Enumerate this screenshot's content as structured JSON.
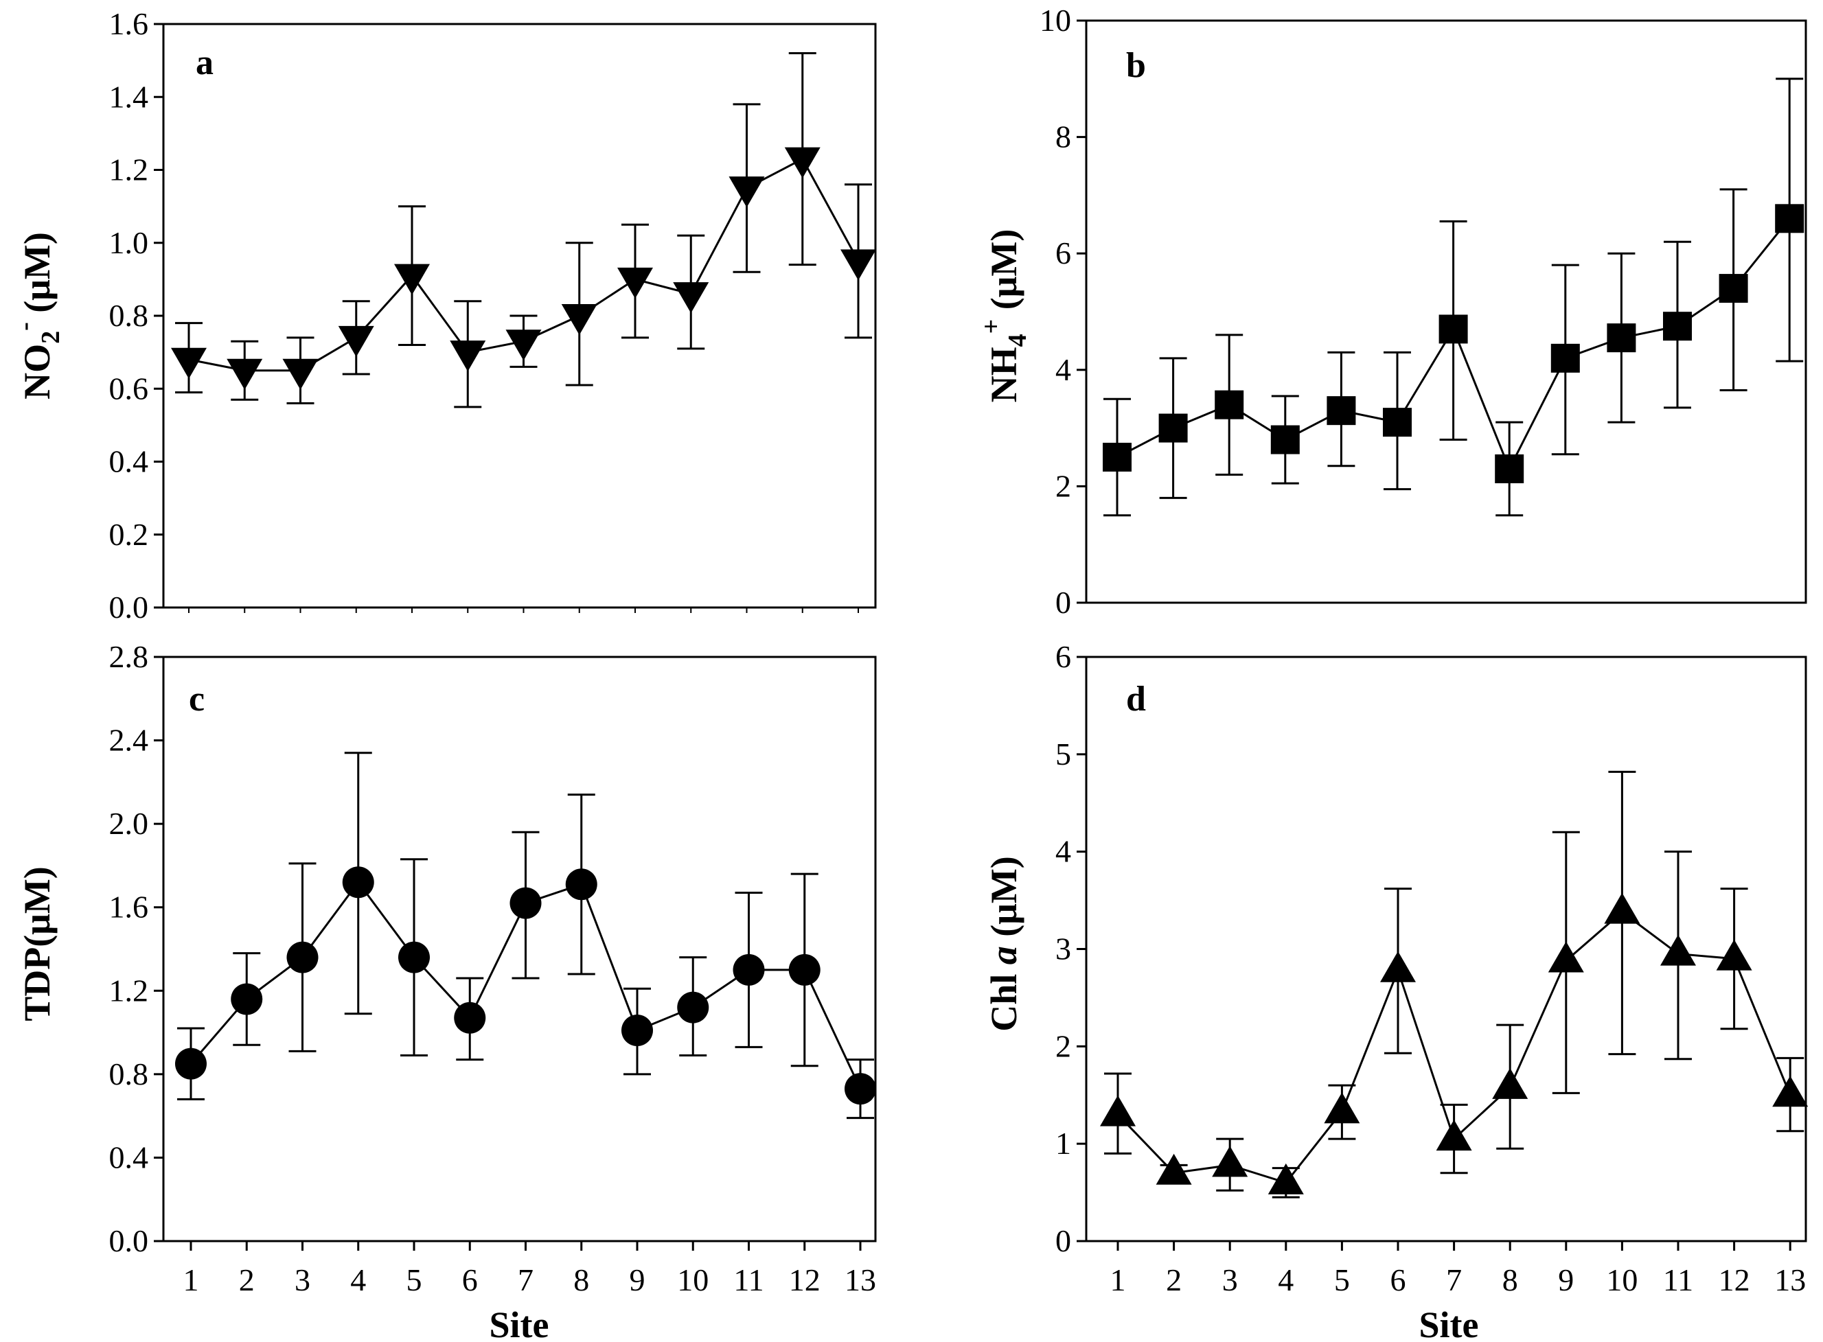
{
  "figure": {
    "panels": {
      "a": {
        "letter": "a",
        "ylabel_main": "NO",
        "ylabel_sub": "2",
        "ylabel_sup": "-",
        "ylabel_unit": " (μM)"
      },
      "b": {
        "letter": "b",
        "ylabel_main": "NH",
        "ylabel_sub": "4",
        "ylabel_sup": "+",
        "ylabel_unit": " (μM)"
      },
      "c": {
        "letter": "c",
        "ylabel_main": "TDP",
        "ylabel_unit": "(μM)"
      },
      "d": {
        "letter": "d",
        "ylabel_main": "Chl ",
        "ylabel_italic": "a",
        "ylabel_unit": " (μM)"
      }
    },
    "xlabel": "Site"
  },
  "chart_data": [
    {
      "id": "a",
      "type": "line",
      "title": "a",
      "ylabel": "NO2- (μM)",
      "xlabel": "",
      "marker": "triangle-down",
      "categories": [
        "1",
        "2",
        "3",
        "4",
        "5",
        "6",
        "7",
        "8",
        "9",
        "10",
        "11",
        "12",
        "13"
      ],
      "values": [
        0.68,
        0.65,
        0.65,
        0.74,
        0.91,
        0.7,
        0.73,
        0.8,
        0.9,
        0.86,
        1.15,
        1.23,
        0.95
      ],
      "error_upper": [
        0.78,
        0.73,
        0.74,
        0.84,
        1.1,
        0.84,
        0.8,
        1.0,
        1.05,
        1.02,
        1.38,
        1.52,
        1.16
      ],
      "error_lower": [
        0.59,
        0.57,
        0.56,
        0.64,
        0.72,
        0.55,
        0.66,
        0.61,
        0.74,
        0.71,
        0.92,
        0.94,
        0.74
      ],
      "ylim": [
        0,
        1.6
      ],
      "yticks": [
        "0.0",
        "0.2",
        "0.4",
        "0.6",
        "0.8",
        "1.0",
        "1.2",
        "1.4",
        "1.6"
      ]
    },
    {
      "id": "b",
      "type": "line",
      "title": "b",
      "ylabel": "NH4+ (μM)",
      "xlabel": "",
      "marker": "square",
      "categories": [
        "1",
        "2",
        "3",
        "4",
        "5",
        "6",
        "7",
        "8",
        "9",
        "10",
        "11",
        "12",
        "13"
      ],
      "values": [
        2.5,
        3.0,
        3.4,
        2.8,
        3.3,
        3.1,
        4.7,
        2.3,
        4.2,
        4.55,
        4.75,
        5.4,
        6.6
      ],
      "error_upper": [
        3.5,
        4.2,
        4.6,
        3.55,
        4.3,
        4.3,
        6.55,
        3.1,
        5.8,
        6.0,
        6.2,
        7.1,
        9.0
      ],
      "error_lower": [
        1.5,
        1.8,
        2.2,
        2.05,
        2.35,
        1.95,
        2.8,
        1.5,
        2.55,
        3.1,
        3.35,
        3.65,
        4.15
      ],
      "ylim": [
        0,
        10
      ],
      "yticks": [
        "0",
        "2",
        "4",
        "6",
        "8",
        "10"
      ]
    },
    {
      "id": "c",
      "type": "line",
      "title": "c",
      "ylabel": "TDP(μM)",
      "xlabel": "Site",
      "marker": "circle",
      "categories": [
        "1",
        "2",
        "3",
        "4",
        "5",
        "6",
        "7",
        "8",
        "9",
        "10",
        "11",
        "12",
        "13"
      ],
      "values": [
        0.85,
        1.16,
        1.36,
        1.72,
        1.36,
        1.07,
        1.62,
        1.71,
        1.01,
        1.12,
        1.3,
        1.3,
        0.73
      ],
      "error_upper": [
        1.02,
        1.38,
        1.81,
        2.34,
        1.83,
        1.26,
        1.96,
        2.14,
        1.21,
        1.36,
        1.67,
        1.76,
        0.87
      ],
      "error_lower": [
        0.68,
        0.94,
        0.91,
        1.09,
        0.89,
        0.87,
        1.26,
        1.28,
        0.8,
        0.89,
        0.93,
        0.84,
        0.59
      ],
      "ylim": [
        0,
        2.8
      ],
      "yticks": [
        "0.0",
        "0.4",
        "0.8",
        "1.2",
        "1.6",
        "2.0",
        "2.4",
        "2.8"
      ]
    },
    {
      "id": "d",
      "type": "line",
      "title": "d",
      "ylabel": "Chl a (μM)",
      "xlabel": "Site",
      "marker": "triangle-up",
      "categories": [
        "1",
        "2",
        "3",
        "4",
        "5",
        "6",
        "7",
        "8",
        "9",
        "10",
        "11",
        "12",
        "13"
      ],
      "values": [
        1.3,
        0.7,
        0.78,
        0.6,
        1.33,
        2.78,
        1.05,
        1.58,
        2.88,
        3.38,
        2.95,
        2.9,
        1.5
      ],
      "error_upper": [
        1.72,
        0.78,
        1.05,
        0.75,
        1.6,
        3.62,
        1.4,
        2.22,
        4.2,
        4.82,
        4.0,
        3.62,
        1.88
      ],
      "error_lower": [
        0.9,
        0.62,
        0.52,
        0.45,
        1.05,
        1.93,
        0.7,
        0.95,
        1.52,
        1.92,
        1.87,
        2.18,
        1.13
      ],
      "ylim": [
        0,
        6
      ],
      "yticks": [
        "0",
        "1",
        "2",
        "3",
        "4",
        "5",
        "6"
      ]
    }
  ]
}
